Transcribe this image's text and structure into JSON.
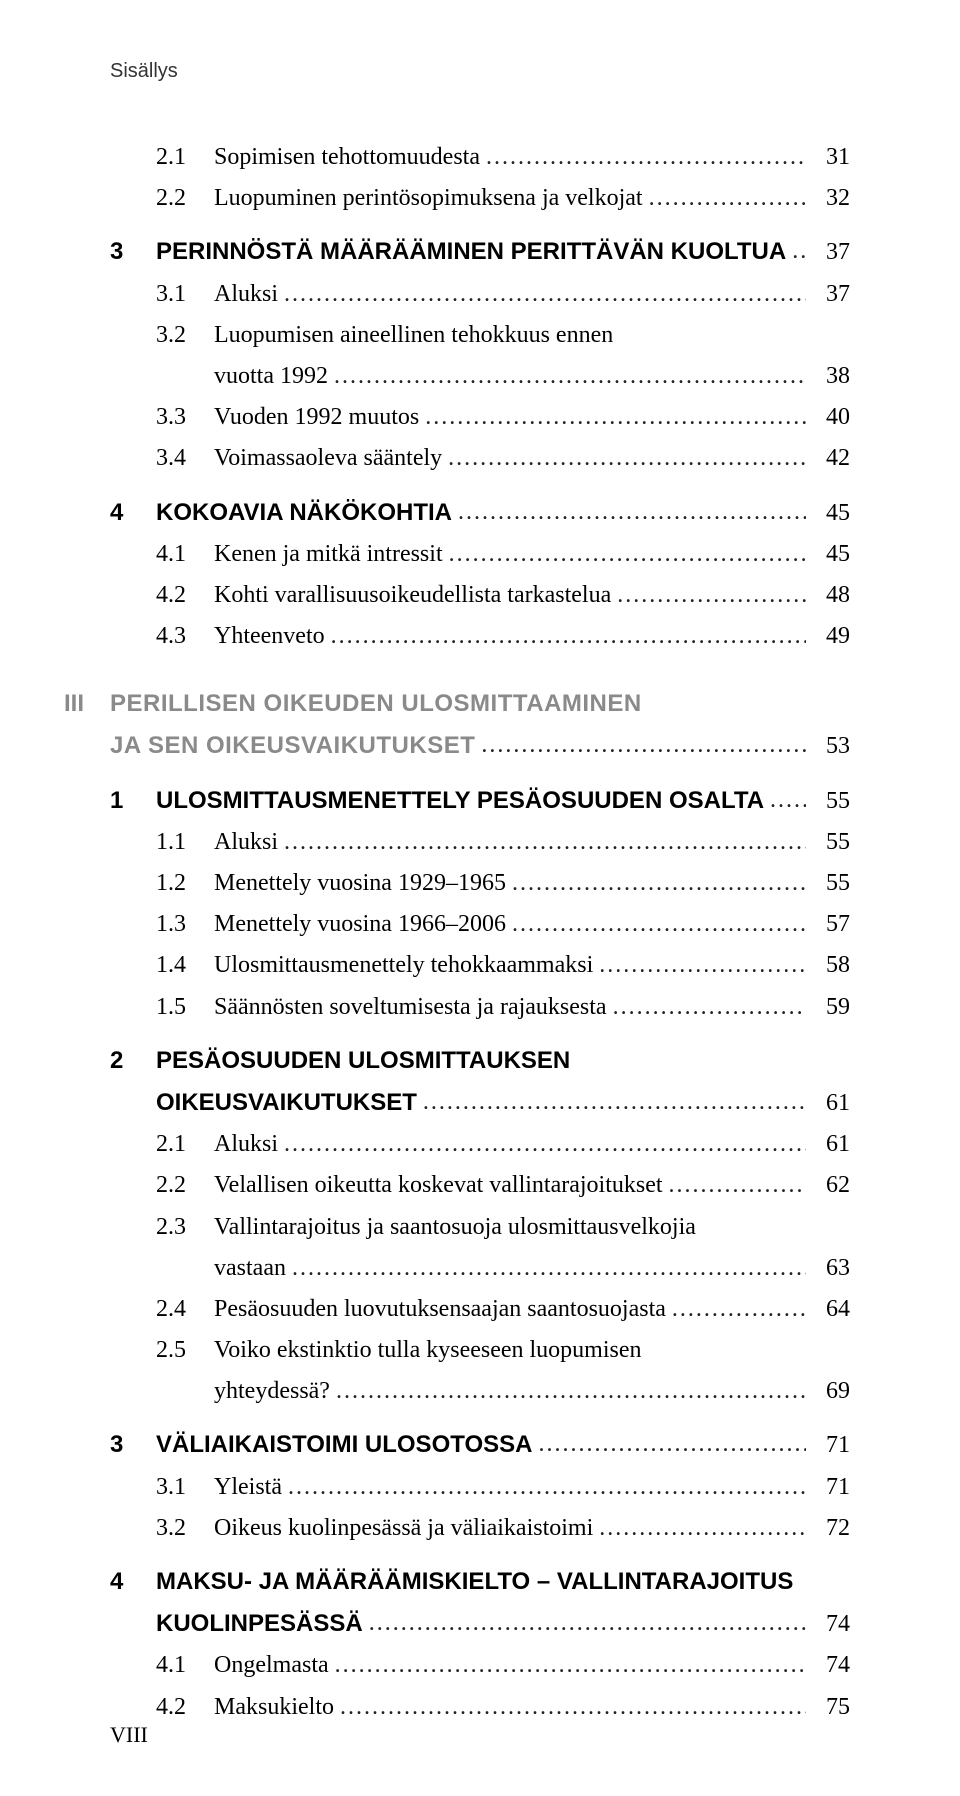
{
  "running_head": "Sisällys",
  "folio": "VIII",
  "entries": [
    {
      "type": "sub",
      "num": "2.1",
      "title": "Sopimisen tehottomuudesta",
      "page": "31"
    },
    {
      "type": "sub",
      "num": "2.2",
      "title": "Luopuminen perintösopimuksena ja velkojat",
      "page": "32"
    },
    {
      "type": "spacer-sm"
    },
    {
      "type": "chapter",
      "num": "3",
      "title": "PERINNÖSTÄ MÄÄRÄÄMINEN PERITTÄVÄN KUOLTUA",
      "page": "37"
    },
    {
      "type": "sub",
      "num": "3.1",
      "title": "Aluksi",
      "page": "37"
    },
    {
      "type": "sub",
      "num": "3.2",
      "title": "Luopumisen aineellinen tehokkuus ennen",
      "page": "",
      "no_leader": true
    },
    {
      "type": "cont-sub",
      "title": "vuotta 1992",
      "page": "38"
    },
    {
      "type": "sub",
      "num": "3.3",
      "title": "Vuoden 1992 muutos",
      "page": "40"
    },
    {
      "type": "sub",
      "num": "3.4",
      "title": "Voimassaoleva sääntely",
      "page": "42"
    },
    {
      "type": "spacer-sm"
    },
    {
      "type": "chapter",
      "num": "4",
      "title": "KOKOAVIA NÄKÖKOHTIA",
      "page": "45"
    },
    {
      "type": "sub",
      "num": "4.1",
      "title": "Kenen ja mitkä intressit",
      "page": "45"
    },
    {
      "type": "sub",
      "num": "4.2",
      "title": "Kohti varallisuusoikeudellista tarkastelua",
      "page": "48"
    },
    {
      "type": "sub",
      "num": "4.3",
      "title": "Yhteenveto",
      "page": "49"
    },
    {
      "type": "spacer-md"
    },
    {
      "type": "part",
      "num": "III",
      "title": "PERILLISEN OIKEUDEN ULOSMITTAAMINEN",
      "page": "",
      "no_leader": true
    },
    {
      "type": "cont-part",
      "title": "JA SEN OIKEUSVAIKUTUKSET",
      "page": "53"
    },
    {
      "type": "spacer-sm"
    },
    {
      "type": "chapter",
      "num": "1",
      "title": "ULOSMITTAUSMENETTELY PESÄOSUUDEN OSALTA",
      "page": "55"
    },
    {
      "type": "sub",
      "num": "1.1",
      "title": "Aluksi",
      "page": "55"
    },
    {
      "type": "sub",
      "num": "1.2",
      "title": "Menettely vuosina 1929–1965",
      "page": "55"
    },
    {
      "type": "sub",
      "num": "1.3",
      "title": "Menettely vuosina 1966–2006",
      "page": "57"
    },
    {
      "type": "sub",
      "num": "1.4",
      "title": "Ulosmittausmenettely tehokkaammaksi",
      "page": "58"
    },
    {
      "type": "sub",
      "num": "1.5",
      "title": "Säännösten soveltumisesta ja rajauksesta",
      "page": "59"
    },
    {
      "type": "spacer-sm"
    },
    {
      "type": "chapter",
      "num": "2",
      "title": "PESÄOSUUDEN ULOSMITTAUKSEN",
      "page": "",
      "no_leader": true
    },
    {
      "type": "cont-chapter",
      "title": "OIKEUSVAIKUTUKSET",
      "page": "61"
    },
    {
      "type": "sub",
      "num": "2.1",
      "title": "Aluksi",
      "page": "61"
    },
    {
      "type": "sub",
      "num": "2.2",
      "title": "Velallisen oikeutta koskevat vallintarajoitukset",
      "page": "62"
    },
    {
      "type": "sub",
      "num": "2.3",
      "title": "Vallintarajoitus ja saantosuoja ulosmittausvelkojia",
      "page": "",
      "no_leader": true
    },
    {
      "type": "cont-sub",
      "title": "vastaan",
      "page": "63"
    },
    {
      "type": "sub",
      "num": "2.4",
      "title": "Pesäosuuden luovutuksensaajan saantosuojasta",
      "page": "64"
    },
    {
      "type": "sub",
      "num": "2.5",
      "title": "Voiko ekstinktio tulla kyseeseen luopumisen",
      "page": "",
      "no_leader": true
    },
    {
      "type": "cont-sub",
      "title": "yhteydessä?",
      "page": "69"
    },
    {
      "type": "spacer-sm"
    },
    {
      "type": "chapter",
      "num": "3",
      "title": "VÄLIAIKAISTOIMI ULOSOTOSSA",
      "page": "71"
    },
    {
      "type": "sub",
      "num": "3.1",
      "title": "Yleistä",
      "page": "71"
    },
    {
      "type": "sub",
      "num": "3.2",
      "title": "Oikeus kuolinpesässä ja väliaikaistoimi",
      "page": "72"
    },
    {
      "type": "spacer-sm"
    },
    {
      "type": "chapter",
      "num": "4",
      "title": "MAKSU- JA MÄÄRÄÄMISKIELTO – VALLINTARAJOITUS",
      "page": "",
      "no_leader": true
    },
    {
      "type": "cont-chapter",
      "title": "KUOLINPESÄSSÄ",
      "page": "74"
    },
    {
      "type": "sub",
      "num": "4.1",
      "title": "Ongelmasta",
      "page": "74"
    },
    {
      "type": "sub",
      "num": "4.2",
      "title": "Maksukielto",
      "page": "75"
    }
  ]
}
